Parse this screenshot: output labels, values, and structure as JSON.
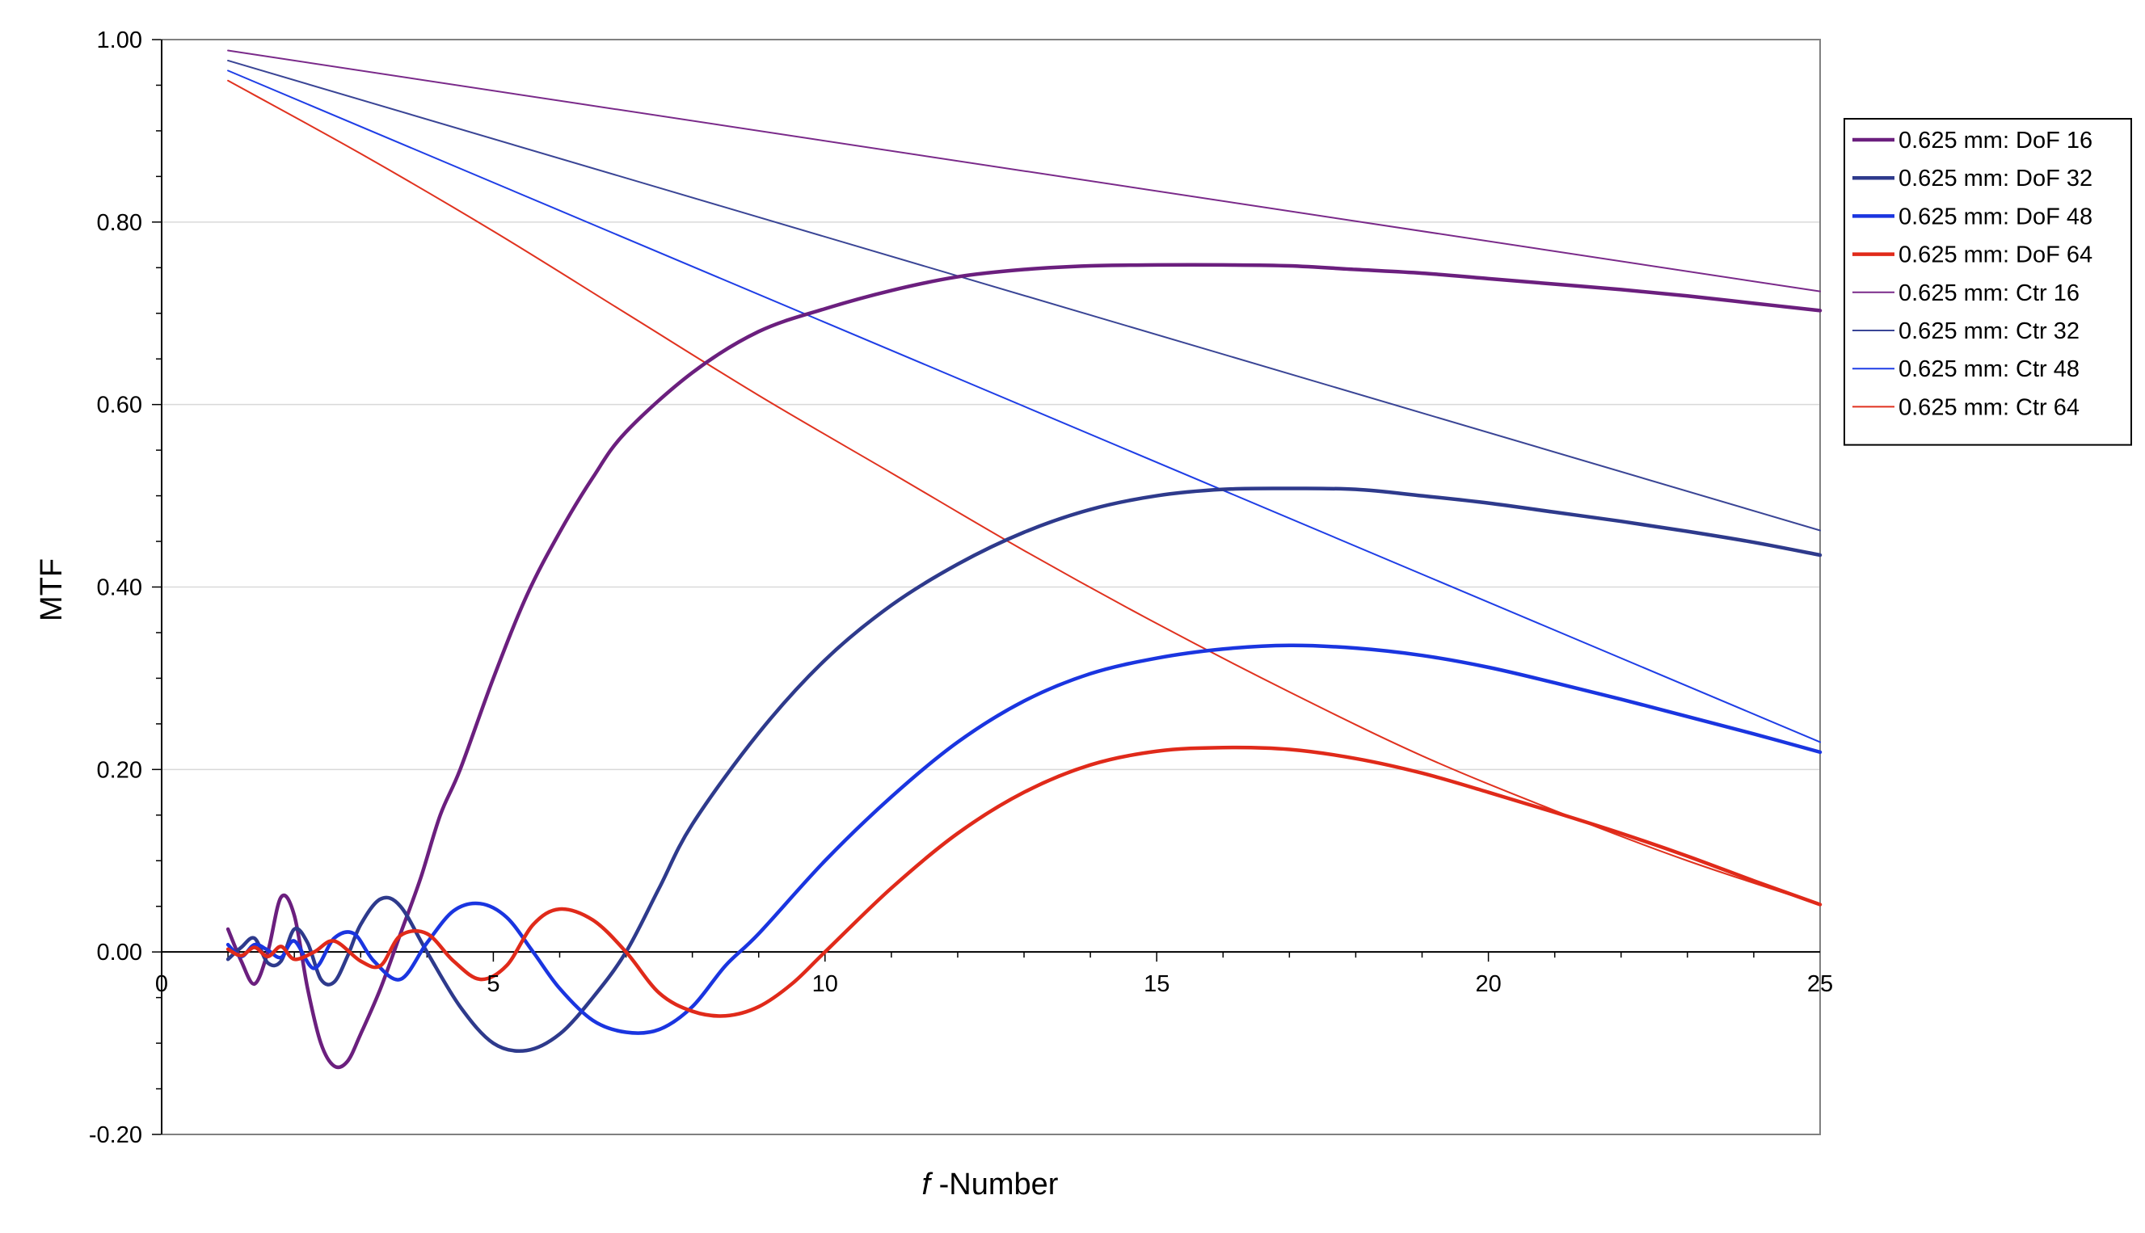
{
  "chart_data": {
    "type": "line",
    "title": "",
    "xlabel_italic": "f",
    "xlabel_rest": " -Number",
    "ylabel": "MTF",
    "xlim": [
      0,
      25
    ],
    "ylim": [
      -0.2,
      1.0
    ],
    "x_ticks": [
      "0",
      "5",
      "10",
      "15",
      "20",
      "25"
    ],
    "x_tick_values": [
      0,
      5,
      10,
      15,
      20,
      25
    ],
    "y_ticks": [
      "1.00",
      "0.80",
      "0.60",
      "0.40",
      "0.20",
      "0.00",
      "-0.20"
    ],
    "y_tick_values": [
      1.0,
      0.8,
      0.6,
      0.4,
      0.2,
      0.0,
      -0.2
    ],
    "grid": "horizontal",
    "legend_position": "right",
    "series": [
      {
        "name": "0.625 mm: DoF 16",
        "color": "#6b1f7e",
        "style": "thick",
        "x": [
          1.0,
          1.2,
          1.4,
          1.6,
          1.8,
          2.0,
          2.2,
          2.4,
          2.6,
          2.8,
          3.0,
          3.3,
          3.6,
          3.9,
          4.2,
          4.5,
          5.0,
          5.5,
          6.0,
          6.5,
          7.0,
          8.0,
          9.0,
          10.0,
          11.0,
          12.0,
          13.0,
          14.0,
          15.0,
          16.0,
          17.0,
          18.0,
          19.0,
          20.0,
          21.0,
          22.0,
          23.0,
          24.0,
          25.0
        ],
        "y": [
          0.025,
          -0.01,
          -0.035,
          0.0,
          0.06,
          0.04,
          -0.04,
          -0.1,
          -0.125,
          -0.12,
          -0.09,
          -0.04,
          0.02,
          0.08,
          0.15,
          0.2,
          0.3,
          0.39,
          0.46,
          0.52,
          0.57,
          0.635,
          0.68,
          0.705,
          0.725,
          0.74,
          0.748,
          0.752,
          0.753,
          0.753,
          0.752,
          0.748,
          0.744,
          0.738,
          0.732,
          0.726,
          0.719,
          0.711,
          0.703
        ]
      },
      {
        "name": "0.625 mm: DoF 32",
        "color": "#2e3a8c",
        "style": "thick",
        "x": [
          1.0,
          1.2,
          1.4,
          1.6,
          1.8,
          2.0,
          2.2,
          2.4,
          2.6,
          2.8,
          3.0,
          3.3,
          3.6,
          4.0,
          4.5,
          5.0,
          5.5,
          6.0,
          6.5,
          7.0,
          7.5,
          8.0,
          9.0,
          10.0,
          11.0,
          12.0,
          13.0,
          14.0,
          15.0,
          16.0,
          17.0,
          18.0,
          19.0,
          20.0,
          21.0,
          22.0,
          23.0,
          24.0,
          25.0
        ],
        "y": [
          -0.008,
          0.005,
          0.015,
          -0.012,
          -0.01,
          0.025,
          0.01,
          -0.03,
          -0.033,
          -0.005,
          0.03,
          0.058,
          0.05,
          0.0,
          -0.06,
          -0.1,
          -0.108,
          -0.09,
          -0.05,
          0.0,
          0.07,
          0.14,
          0.24,
          0.32,
          0.38,
          0.425,
          0.46,
          0.485,
          0.5,
          0.507,
          0.508,
          0.507,
          0.5,
          0.492,
          0.482,
          0.472,
          0.461,
          0.449,
          0.435
        ]
      },
      {
        "name": "0.625 mm: DoF 48",
        "color": "#1a35e0",
        "style": "thick",
        "x": [
          1.0,
          1.2,
          1.4,
          1.6,
          1.8,
          2.0,
          2.3,
          2.6,
          2.9,
          3.2,
          3.6,
          4.0,
          4.4,
          4.8,
          5.2,
          5.6,
          6.0,
          6.5,
          7.0,
          7.5,
          8.0,
          8.5,
          9.0,
          10.0,
          11.0,
          12.0,
          13.0,
          14.0,
          15.0,
          16.0,
          17.0,
          18.0,
          19.0,
          20.0,
          21.0,
          22.0,
          23.0,
          24.0,
          25.0
        ],
        "y": [
          0.008,
          -0.005,
          0.008,
          0.002,
          -0.006,
          0.012,
          -0.018,
          0.015,
          0.02,
          -0.01,
          -0.03,
          0.01,
          0.045,
          0.053,
          0.038,
          0.0,
          -0.04,
          -0.075,
          -0.088,
          -0.085,
          -0.06,
          -0.015,
          0.02,
          0.1,
          0.17,
          0.23,
          0.275,
          0.305,
          0.322,
          0.332,
          0.336,
          0.333,
          0.325,
          0.312,
          0.295,
          0.277,
          0.258,
          0.239,
          0.219
        ]
      },
      {
        "name": "0.625 mm: DoF 64",
        "color": "#e02a1a",
        "style": "thick",
        "x": [
          1.0,
          1.2,
          1.4,
          1.6,
          1.8,
          2.0,
          2.3,
          2.6,
          3.0,
          3.3,
          3.6,
          4.0,
          4.4,
          4.8,
          5.2,
          5.6,
          6.0,
          6.5,
          7.0,
          7.5,
          8.0,
          8.5,
          9.0,
          9.5,
          10.0,
          11.0,
          12.0,
          13.0,
          14.0,
          15.0,
          16.0,
          17.0,
          18.0,
          19.0,
          20.0,
          21.0,
          22.0,
          23.0,
          24.0,
          25.0
        ],
        "y": [
          0.003,
          -0.004,
          0.005,
          -0.005,
          0.006,
          -0.008,
          0.0,
          0.012,
          -0.01,
          -0.015,
          0.018,
          0.02,
          -0.01,
          -0.03,
          -0.015,
          0.03,
          0.047,
          0.035,
          0.0,
          -0.045,
          -0.065,
          -0.07,
          -0.06,
          -0.035,
          0.0,
          0.07,
          0.13,
          0.175,
          0.205,
          0.22,
          0.224,
          0.222,
          0.212,
          0.196,
          0.175,
          0.153,
          0.13,
          0.105,
          0.078,
          0.052
        ]
      },
      {
        "name": "0.625 mm: Ctr 16",
        "color": "#7a2a8a",
        "style": "thin",
        "x": [
          1.0,
          25.0
        ],
        "y": [
          0.988,
          0.724
        ]
      },
      {
        "name": "0.625 mm: Ctr 32",
        "color": "#3a4596",
        "style": "thin",
        "x": [
          1.0,
          25.0
        ],
        "y": [
          0.977,
          0.462
        ]
      },
      {
        "name": "0.625 mm: Ctr 48",
        "color": "#1f3ee6",
        "style": "thin",
        "x": [
          1.0,
          25.0
        ],
        "y": [
          0.966,
          0.23
        ]
      },
      {
        "name": "0.625 mm: Ctr 64",
        "color": "#e0321f",
        "style": "thin",
        "x": [
          1.0,
          3.0,
          5.0,
          7.0,
          9.0,
          11.0,
          13.0,
          15.0,
          17.0,
          19.0,
          21.0,
          23.0,
          25.0
        ],
        "y": [
          0.955,
          0.875,
          0.79,
          0.7,
          0.61,
          0.525,
          0.44,
          0.36,
          0.285,
          0.215,
          0.155,
          0.1,
          0.052
        ]
      }
    ]
  }
}
